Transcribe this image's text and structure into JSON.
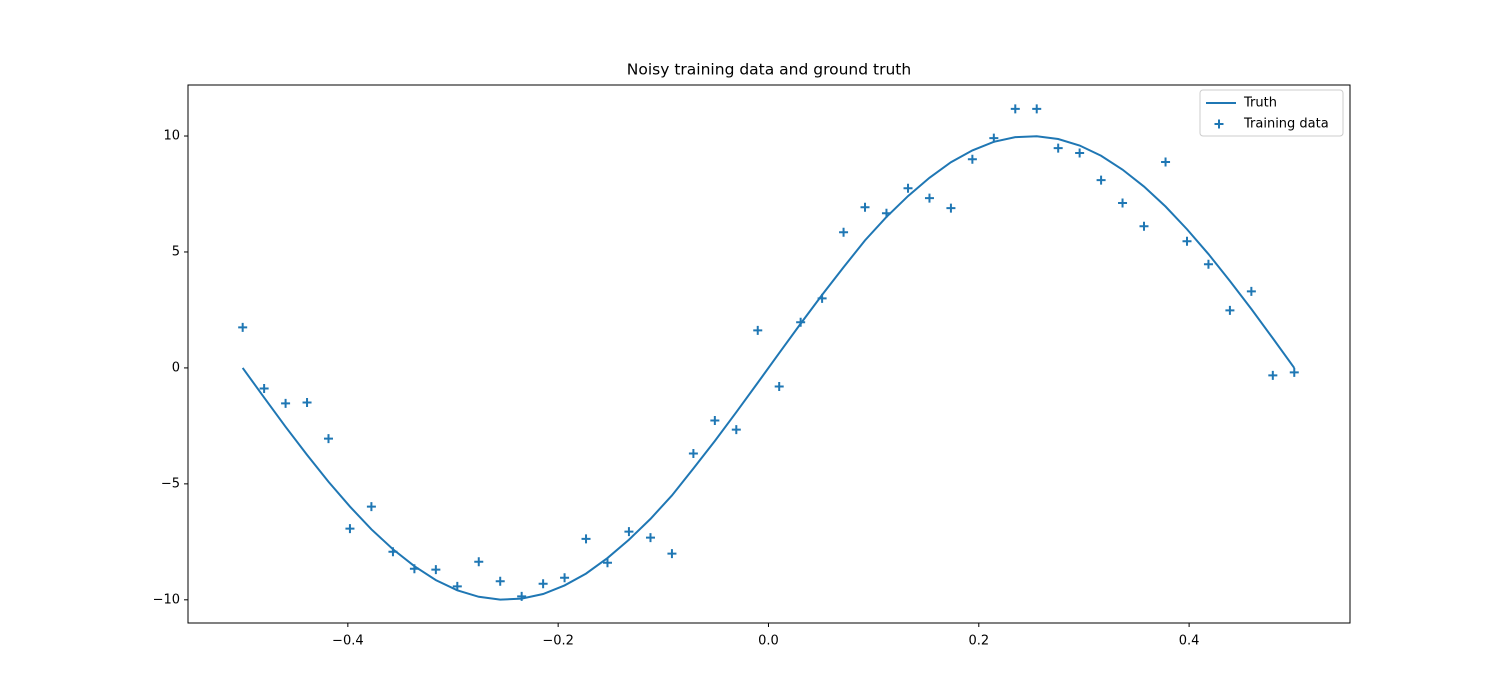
{
  "chart_data": {
    "type": "line",
    "title": "Noisy training data and ground truth",
    "x": [
      -0.5,
      -0.4796,
      -0.4592,
      -0.4388,
      -0.4184,
      -0.398,
      -0.3776,
      -0.3571,
      -0.3367,
      -0.3163,
      -0.2959,
      -0.2755,
      -0.2551,
      -0.2347,
      -0.2143,
      -0.1939,
      -0.1735,
      -0.1531,
      -0.1327,
      -0.1122,
      -0.0918,
      -0.0714,
      -0.051,
      -0.0306,
      -0.0102,
      0.0102,
      0.0306,
      0.051,
      0.0714,
      0.0918,
      0.1122,
      0.1327,
      0.1531,
      0.1735,
      0.1939,
      0.2143,
      0.2347,
      0.2551,
      0.2755,
      0.2959,
      0.3163,
      0.3367,
      0.3571,
      0.3776,
      0.398,
      0.4184,
      0.4388,
      0.4592,
      0.4796,
      0.5
    ],
    "series": [
      {
        "name": "Truth",
        "type": "line",
        "color": "#1f77b4",
        "values": [
          0,
          -1.28,
          -2.54,
          -3.75,
          -4.91,
          -5.98,
          -6.96,
          -7.82,
          -8.55,
          -9.15,
          -9.59,
          -9.87,
          -9.99,
          -9.95,
          -9.75,
          -9.38,
          -8.87,
          -8.2,
          -7.41,
          -6.51,
          -5.5,
          -4.34,
          -3.15,
          -1.91,
          -0.64,
          0.64,
          1.91,
          3.15,
          4.34,
          5.5,
          6.51,
          7.41,
          8.2,
          8.87,
          9.38,
          9.75,
          9.95,
          9.99,
          9.87,
          9.59,
          9.15,
          8.55,
          7.82,
          6.96,
          5.98,
          4.91,
          3.75,
          2.54,
          1.28,
          0
        ]
      },
      {
        "name": "Training data",
        "type": "scatter",
        "color": "#1f77b4",
        "values": [
          1.75,
          -0.89,
          -1.53,
          -1.49,
          -3.05,
          -6.93,
          -5.98,
          -7.93,
          -8.66,
          -8.7,
          -9.42,
          -8.36,
          -9.2,
          -9.85,
          -9.31,
          -9.05,
          -7.37,
          -8.4,
          -7.06,
          -7.32,
          -8.01,
          -3.69,
          -2.27,
          -2.66,
          1.62,
          -0.8,
          1.97,
          3.0,
          5.85,
          6.93,
          6.67,
          7.75,
          7.32,
          6.89,
          9.0,
          9.91,
          11.17,
          11.17,
          9.48,
          9.27,
          8.1,
          7.11,
          6.11,
          8.88,
          5.46,
          4.47,
          2.48,
          3.3,
          -0.32,
          -0.19
        ]
      }
    ],
    "xlim": [
      -0.552,
      0.553
    ],
    "ylim": [
      -11.0,
      12.2
    ],
    "xticks": [
      {
        "value": -0.4,
        "label": "−0.4"
      },
      {
        "value": -0.2,
        "label": "−0.2"
      },
      {
        "value": 0,
        "label": "0.0"
      },
      0.2,
      0.4
    ],
    "yticks": [
      {
        "value": -10,
        "label": "−10"
      },
      {
        "value": -5,
        "label": "−5"
      },
      0,
      5,
      10
    ],
    "legend": "upper right"
  }
}
